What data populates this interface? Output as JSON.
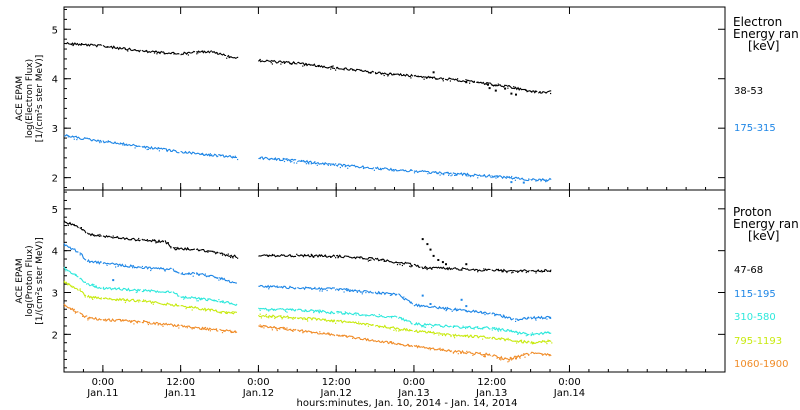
{
  "chart_data": [
    {
      "type": "scatter",
      "panel": "electron",
      "ylabel_lines": [
        "ACE EPAM",
        "log(Electron Flux)",
        "[1/(cm²s ster MeV)]"
      ],
      "ylim": [
        1.75,
        5.45
      ],
      "yticks": [
        2,
        3,
        4,
        5
      ],
      "xlim": [
        -0.25,
        4.0
      ],
      "legend_title_lines": [
        "Electron",
        "Energy ran",
        "[keV]"
      ],
      "legend_placement": "right",
      "grid": false,
      "series": [
        {
          "name": "38-53",
          "color": "#000000",
          "points": [
            [
              -0.25,
              4.72
            ],
            [
              0.0,
              4.66
            ],
            [
              0.25,
              4.56
            ],
            [
              0.5,
              4.5
            ],
            [
              0.6,
              4.55
            ],
            [
              0.7,
              4.54
            ],
            [
              0.8,
              4.46
            ],
            [
              0.87,
              4.41
            ],
            [
              1.0,
              4.37
            ],
            [
              1.25,
              4.31
            ],
            [
              1.5,
              4.22
            ],
            [
              1.75,
              4.12
            ],
            [
              2.0,
              4.06
            ],
            [
              2.2,
              4.0
            ],
            [
              2.4,
              3.93
            ],
            [
              2.6,
              3.84
            ],
            [
              2.8,
              3.72
            ],
            [
              2.89,
              3.74
            ]
          ],
          "gaps": [
            0.89,
            1.0
          ],
          "scatter_points": [
            [
              2.12,
              4.15
            ],
            [
              2.33,
              3.95
            ],
            [
              2.47,
              3.9
            ],
            [
              2.48,
              3.83
            ],
            [
              2.52,
              3.78
            ],
            [
              2.58,
              3.82
            ],
            [
              2.62,
              3.72
            ],
            [
              2.65,
              3.7
            ]
          ]
        },
        {
          "name": "175-315",
          "color": "#1e86e6",
          "points": [
            [
              -0.25,
              2.85
            ],
            [
              0.0,
              2.73
            ],
            [
              0.25,
              2.63
            ],
            [
              0.5,
              2.52
            ],
            [
              0.75,
              2.44
            ],
            [
              0.87,
              2.41
            ],
            [
              1.0,
              2.4
            ],
            [
              1.25,
              2.34
            ],
            [
              1.5,
              2.26
            ],
            [
              1.75,
              2.19
            ],
            [
              2.0,
              2.13
            ],
            [
              2.25,
              2.08
            ],
            [
              2.5,
              2.03
            ],
            [
              2.75,
              1.96
            ],
            [
              2.89,
              1.96
            ]
          ],
          "gaps": [
            0.89,
            1.0
          ],
          "scatter_points": [
            [
              2.62,
              1.93
            ],
            [
              2.7,
              1.92
            ]
          ]
        }
      ]
    },
    {
      "type": "scatter",
      "panel": "proton",
      "ylabel_lines": [
        "ACE EPAM",
        "log(Proton Flux)",
        "[1/(cm²s ster MeV)]"
      ],
      "ylim": [
        1.1,
        5.45
      ],
      "yticks": [
        2,
        3,
        4,
        5
      ],
      "xlim": [
        -0.25,
        4.0
      ],
      "legend_title_lines": [
        "Proton",
        "Energy ran",
        "[keV]"
      ],
      "legend_placement": "right",
      "grid": false,
      "series": [
        {
          "name": "47-68",
          "color": "#000000",
          "points": [
            [
              -0.25,
              4.7
            ],
            [
              -0.15,
              4.55
            ],
            [
              -0.1,
              4.4
            ],
            [
              0.0,
              4.35
            ],
            [
              0.25,
              4.25
            ],
            [
              0.4,
              4.22
            ],
            [
              0.45,
              4.05
            ],
            [
              0.6,
              4.03
            ],
            [
              0.75,
              3.93
            ],
            [
              0.87,
              3.85
            ],
            [
              1.0,
              3.88
            ],
            [
              1.25,
              3.88
            ],
            [
              1.5,
              3.87
            ],
            [
              1.75,
              3.8
            ],
            [
              2.0,
              3.66
            ],
            [
              2.05,
              3.6
            ],
            [
              2.25,
              3.57
            ],
            [
              2.5,
              3.53
            ],
            [
              2.75,
              3.52
            ],
            [
              2.89,
              3.53
            ]
          ],
          "gaps": [
            0.89,
            1.0
          ],
          "scatter_points": [
            [
              2.05,
              4.3
            ],
            [
              2.08,
              4.18
            ],
            [
              2.1,
              4.05
            ],
            [
              2.12,
              3.9
            ],
            [
              2.15,
              3.8
            ],
            [
              2.18,
              3.75
            ],
            [
              2.2,
              3.7
            ],
            [
              2.33,
              3.7
            ]
          ]
        },
        {
          "name": "115-195",
          "color": "#1e86e6",
          "points": [
            [
              -0.25,
              4.15
            ],
            [
              -0.15,
              3.95
            ],
            [
              -0.1,
              3.75
            ],
            [
              0.0,
              3.7
            ],
            [
              0.25,
              3.6
            ],
            [
              0.45,
              3.55
            ],
            [
              0.5,
              3.45
            ],
            [
              0.6,
              3.45
            ],
            [
              0.75,
              3.35
            ],
            [
              0.87,
              3.2
            ],
            [
              1.0,
              3.15
            ],
            [
              1.25,
              3.11
            ],
            [
              1.5,
              3.08
            ],
            [
              1.75,
              3.0
            ],
            [
              1.9,
              2.95
            ],
            [
              2.0,
              2.7
            ],
            [
              2.25,
              2.6
            ],
            [
              2.5,
              2.5
            ],
            [
              2.65,
              2.35
            ],
            [
              2.75,
              2.4
            ],
            [
              2.89,
              2.4
            ]
          ],
          "gaps": [
            0.89,
            1.0
          ],
          "scatter_points": [
            [
              0.06,
              3.32
            ],
            [
              2.05,
              2.95
            ],
            [
              2.1,
              2.75
            ],
            [
              2.3,
              2.85
            ],
            [
              2.33,
              2.7
            ]
          ]
        },
        {
          "name": "310-580",
          "color": "#2ee8dc",
          "points": [
            [
              -0.25,
              3.6
            ],
            [
              -0.15,
              3.35
            ],
            [
              -0.1,
              3.2
            ],
            [
              0.0,
              3.1
            ],
            [
              0.25,
              3.05
            ],
            [
              0.45,
              3.0
            ],
            [
              0.5,
              2.9
            ],
            [
              0.75,
              2.8
            ],
            [
              0.87,
              2.7
            ],
            [
              1.0,
              2.6
            ],
            [
              1.25,
              2.58
            ],
            [
              1.5,
              2.52
            ],
            [
              1.75,
              2.45
            ],
            [
              1.9,
              2.4
            ],
            [
              2.0,
              2.25
            ],
            [
              2.25,
              2.18
            ],
            [
              2.5,
              2.15
            ],
            [
              2.75,
              2.0
            ],
            [
              2.89,
              2.05
            ]
          ],
          "gaps": [
            0.89,
            1.0
          ],
          "scatter_points": []
        },
        {
          "name": "795-1193",
          "color": "#c8ea10",
          "points": [
            [
              -0.25,
              3.25
            ],
            [
              -0.15,
              3.05
            ],
            [
              -0.1,
              2.9
            ],
            [
              0.0,
              2.85
            ],
            [
              0.25,
              2.8
            ],
            [
              0.5,
              2.68
            ],
            [
              0.75,
              2.55
            ],
            [
              0.87,
              2.5
            ],
            [
              1.0,
              2.45
            ],
            [
              1.25,
              2.4
            ],
            [
              1.5,
              2.32
            ],
            [
              1.75,
              2.22
            ],
            [
              2.0,
              2.08
            ],
            [
              2.25,
              1.98
            ],
            [
              2.5,
              1.92
            ],
            [
              2.75,
              1.8
            ],
            [
              2.89,
              1.85
            ]
          ],
          "gaps": [
            0.89,
            1.0
          ],
          "scatter_points": []
        },
        {
          "name": "1060-1900",
          "color": "#f08c28",
          "points": [
            [
              -0.25,
              2.7
            ],
            [
              -0.15,
              2.5
            ],
            [
              -0.1,
              2.4
            ],
            [
              0.0,
              2.35
            ],
            [
              0.25,
              2.3
            ],
            [
              0.5,
              2.2
            ],
            [
              0.75,
              2.1
            ],
            [
              0.87,
              2.05
            ],
            [
              1.0,
              2.2
            ],
            [
              1.25,
              2.1
            ],
            [
              1.5,
              1.98
            ],
            [
              1.75,
              1.85
            ],
            [
              2.0,
              1.72
            ],
            [
              2.25,
              1.6
            ],
            [
              2.5,
              1.5
            ],
            [
              2.6,
              1.4
            ],
            [
              2.75,
              1.55
            ],
            [
              2.89,
              1.5
            ]
          ],
          "gaps": [
            0.89,
            1.0
          ],
          "scatter_points": [
            [
              2.45,
              1.5
            ],
            [
              2.65,
              1.45
            ]
          ]
        }
      ]
    }
  ],
  "x_ticks": [
    {
      "value": 0.0,
      "time": "0:00",
      "date": "Jan.11"
    },
    {
      "value": 0.5,
      "time": "12:00",
      "date": "Jan.11"
    },
    {
      "value": 1.0,
      "time": "0:00",
      "date": "Jan.12"
    },
    {
      "value": 1.5,
      "time": "12:00",
      "date": "Jan.12"
    },
    {
      "value": 2.0,
      "time": "0:00",
      "date": "Jan.13"
    },
    {
      "value": 2.5,
      "time": "12:00",
      "date": "Jan.13"
    },
    {
      "value": 3.0,
      "time": "0:00",
      "date": "Jan.14"
    }
  ],
  "xlabel": "hours:minutes, Jan. 10, 2014 - Jan. 14, 2014"
}
